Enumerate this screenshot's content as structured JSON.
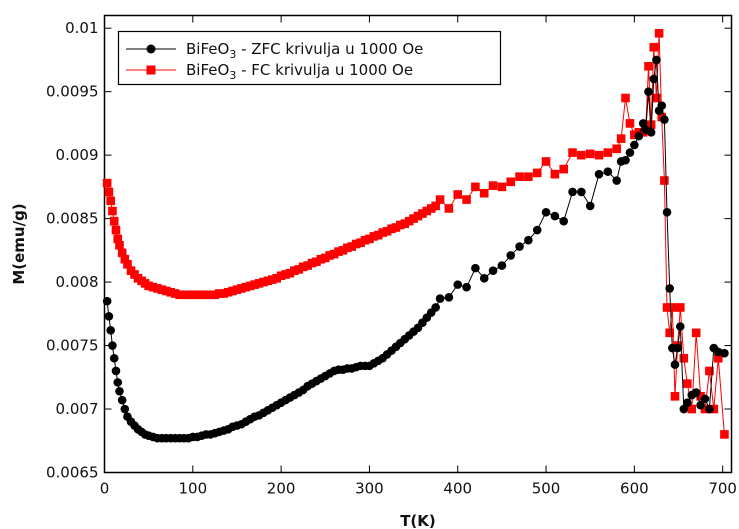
{
  "chart_data": {
    "type": "line",
    "title": "",
    "xlabel": "T(K)",
    "ylabel": "M(emu/g)",
    "xlim": [
      0,
      710
    ],
    "ylim": [
      0.0065,
      0.0101
    ],
    "x_ticks": [
      0,
      100,
      200,
      300,
      400,
      500,
      600,
      700
    ],
    "x_tick_labels": [
      "0",
      "100",
      "200",
      "300",
      "400",
      "500",
      "600",
      "700"
    ],
    "y_ticks": [
      0.0065,
      0.007,
      0.0075,
      0.008,
      0.0085,
      0.009,
      0.0095,
      0.01
    ],
    "y_tick_labels": [
      "0.0065",
      "0.007",
      "0.0075",
      "0.008",
      "0.0085",
      "0.009",
      "0.0095",
      "0.01"
    ],
    "grid": false,
    "legend_position": "top-left",
    "series": [
      {
        "name": "BiFeO₃ - ZFC krivulja u 1000 Oe",
        "legend_base": "BiFeO",
        "legend_sub": "3",
        "legend_rest": " - ZFC krivulja u 1000 Oe",
        "color": "#000000",
        "marker": "circle",
        "x": [
          3,
          5,
          7,
          9,
          11,
          13,
          15,
          17,
          20,
          23,
          26,
          30,
          34,
          38,
          42,
          46,
          50,
          55,
          60,
          65,
          70,
          75,
          80,
          85,
          90,
          95,
          100,
          105,
          110,
          115,
          120,
          125,
          130,
          135,
          140,
          145,
          150,
          155,
          160,
          165,
          170,
          175,
          180,
          185,
          190,
          195,
          200,
          205,
          210,
          215,
          220,
          225,
          230,
          235,
          240,
          245,
          250,
          255,
          260,
          265,
          270,
          275,
          280,
          285,
          290,
          295,
          300,
          305,
          310,
          315,
          320,
          325,
          330,
          335,
          340,
          345,
          350,
          355,
          360,
          365,
          370,
          375,
          380,
          390,
          400,
          410,
          420,
          430,
          440,
          450,
          460,
          470,
          480,
          490,
          500,
          510,
          520,
          530,
          540,
          550,
          560,
          570,
          580,
          585,
          590,
          595,
          600,
          605,
          610,
          613,
          616,
          619,
          622,
          625,
          628,
          631,
          634,
          637,
          640,
          643,
          646,
          649,
          652,
          656,
          660,
          665,
          670,
          675,
          680,
          685,
          690,
          695,
          702
        ],
        "y": [
          0.00785,
          0.00773,
          0.00762,
          0.0075,
          0.0074,
          0.0073,
          0.00721,
          0.00714,
          0.00707,
          0.007,
          0.00694,
          0.0069,
          0.00687,
          0.00684,
          0.00682,
          0.0068,
          0.00679,
          0.00678,
          0.00677,
          0.00677,
          0.00677,
          0.00677,
          0.00677,
          0.00677,
          0.00677,
          0.00677,
          0.00678,
          0.00678,
          0.00679,
          0.0068,
          0.0068,
          0.00681,
          0.00682,
          0.00683,
          0.00684,
          0.00686,
          0.00687,
          0.00688,
          0.0069,
          0.00692,
          0.00694,
          0.00695,
          0.00697,
          0.00699,
          0.00701,
          0.00703,
          0.00705,
          0.00707,
          0.00709,
          0.00711,
          0.00713,
          0.00715,
          0.00718,
          0.0072,
          0.00722,
          0.00724,
          0.00726,
          0.00728,
          0.0073,
          0.00731,
          0.00731,
          0.00732,
          0.00732,
          0.00733,
          0.00734,
          0.00734,
          0.00734,
          0.00736,
          0.00738,
          0.0074,
          0.00743,
          0.00746,
          0.00749,
          0.00752,
          0.00755,
          0.00758,
          0.00761,
          0.00764,
          0.00768,
          0.00772,
          0.00776,
          0.0078,
          0.00787,
          0.00788,
          0.00798,
          0.00796,
          0.00811,
          0.00803,
          0.00809,
          0.00813,
          0.00821,
          0.00828,
          0.00833,
          0.00841,
          0.00855,
          0.00852,
          0.00848,
          0.00871,
          0.00871,
          0.0086,
          0.00885,
          0.00887,
          0.0088,
          0.00895,
          0.00896,
          0.00902,
          0.00908,
          0.00915,
          0.00925,
          0.0092,
          0.0095,
          0.00918,
          0.0096,
          0.00975,
          0.00935,
          0.00939,
          0.00928,
          0.00855,
          0.00795,
          0.00748,
          0.00735,
          0.00748,
          0.00765,
          0.007,
          0.00705,
          0.00711,
          0.00713,
          0.00703,
          0.00708,
          0.007,
          0.00748,
          0.00745,
          0.00744
        ]
      },
      {
        "name": "BiFeO₃ - FC krivulja u 1000 Oe",
        "legend_base": "BiFeO",
        "legend_sub": "3",
        "legend_rest": " - FC krivulja u 1000 Oe",
        "color": "#ff0000",
        "marker": "square",
        "x": [
          3,
          5,
          7,
          9,
          11,
          13,
          15,
          17,
          20,
          23,
          26,
          30,
          34,
          38,
          42,
          46,
          50,
          55,
          60,
          65,
          70,
          75,
          80,
          85,
          90,
          95,
          100,
          105,
          110,
          115,
          120,
          125,
          130,
          135,
          140,
          145,
          150,
          155,
          160,
          165,
          170,
          175,
          180,
          185,
          190,
          195,
          200,
          205,
          210,
          215,
          220,
          225,
          230,
          235,
          240,
          245,
          250,
          255,
          260,
          265,
          270,
          275,
          280,
          285,
          290,
          295,
          300,
          305,
          310,
          315,
          320,
          325,
          330,
          335,
          340,
          345,
          350,
          355,
          360,
          365,
          370,
          375,
          380,
          390,
          400,
          410,
          420,
          430,
          440,
          450,
          460,
          470,
          480,
          490,
          500,
          510,
          520,
          530,
          540,
          550,
          560,
          570,
          580,
          585,
          590,
          595,
          600,
          605,
          610,
          613,
          616,
          619,
          622,
          625,
          628,
          631,
          634,
          637,
          640,
          643,
          646,
          649,
          652,
          656,
          660,
          665,
          670,
          675,
          680,
          685,
          690,
          695,
          702
        ],
        "y": [
          0.00878,
          0.00871,
          0.00864,
          0.00856,
          0.00848,
          0.00841,
          0.00834,
          0.00829,
          0.00823,
          0.00818,
          0.00814,
          0.00809,
          0.00806,
          0.00803,
          0.00801,
          0.00799,
          0.00797,
          0.00796,
          0.00795,
          0.00794,
          0.00793,
          0.00792,
          0.00791,
          0.0079,
          0.0079,
          0.0079,
          0.0079,
          0.0079,
          0.0079,
          0.0079,
          0.0079,
          0.0079,
          0.00791,
          0.00791,
          0.00792,
          0.00793,
          0.00794,
          0.00795,
          0.00796,
          0.00797,
          0.00798,
          0.00799,
          0.008,
          0.00801,
          0.00802,
          0.00803,
          0.00805,
          0.00806,
          0.00807,
          0.00809,
          0.0081,
          0.00812,
          0.00813,
          0.00815,
          0.00816,
          0.00818,
          0.00819,
          0.00821,
          0.00822,
          0.00824,
          0.00825,
          0.00827,
          0.00828,
          0.0083,
          0.00831,
          0.00833,
          0.00834,
          0.00836,
          0.00837,
          0.00839,
          0.0084,
          0.00842,
          0.00843,
          0.00845,
          0.00846,
          0.00848,
          0.0085,
          0.00852,
          0.00854,
          0.00856,
          0.00858,
          0.0086,
          0.00865,
          0.00858,
          0.00869,
          0.00865,
          0.00875,
          0.0087,
          0.00876,
          0.00875,
          0.00879,
          0.00883,
          0.00883,
          0.00886,
          0.00895,
          0.00885,
          0.00889,
          0.00902,
          0.009,
          0.00901,
          0.009,
          0.00902,
          0.00905,
          0.00913,
          0.00945,
          0.00925,
          0.00916,
          0.00918,
          0.00918,
          0.00922,
          0.0097,
          0.00924,
          0.00985,
          0.00945,
          0.00996,
          0.0093,
          0.0088,
          0.0078,
          0.0076,
          0.0078,
          0.0071,
          0.0075,
          0.0078,
          0.0074,
          0.0072,
          0.007,
          0.0076,
          0.0071,
          0.007,
          0.0073,
          0.007,
          0.0074,
          0.0068
        ]
      }
    ]
  }
}
